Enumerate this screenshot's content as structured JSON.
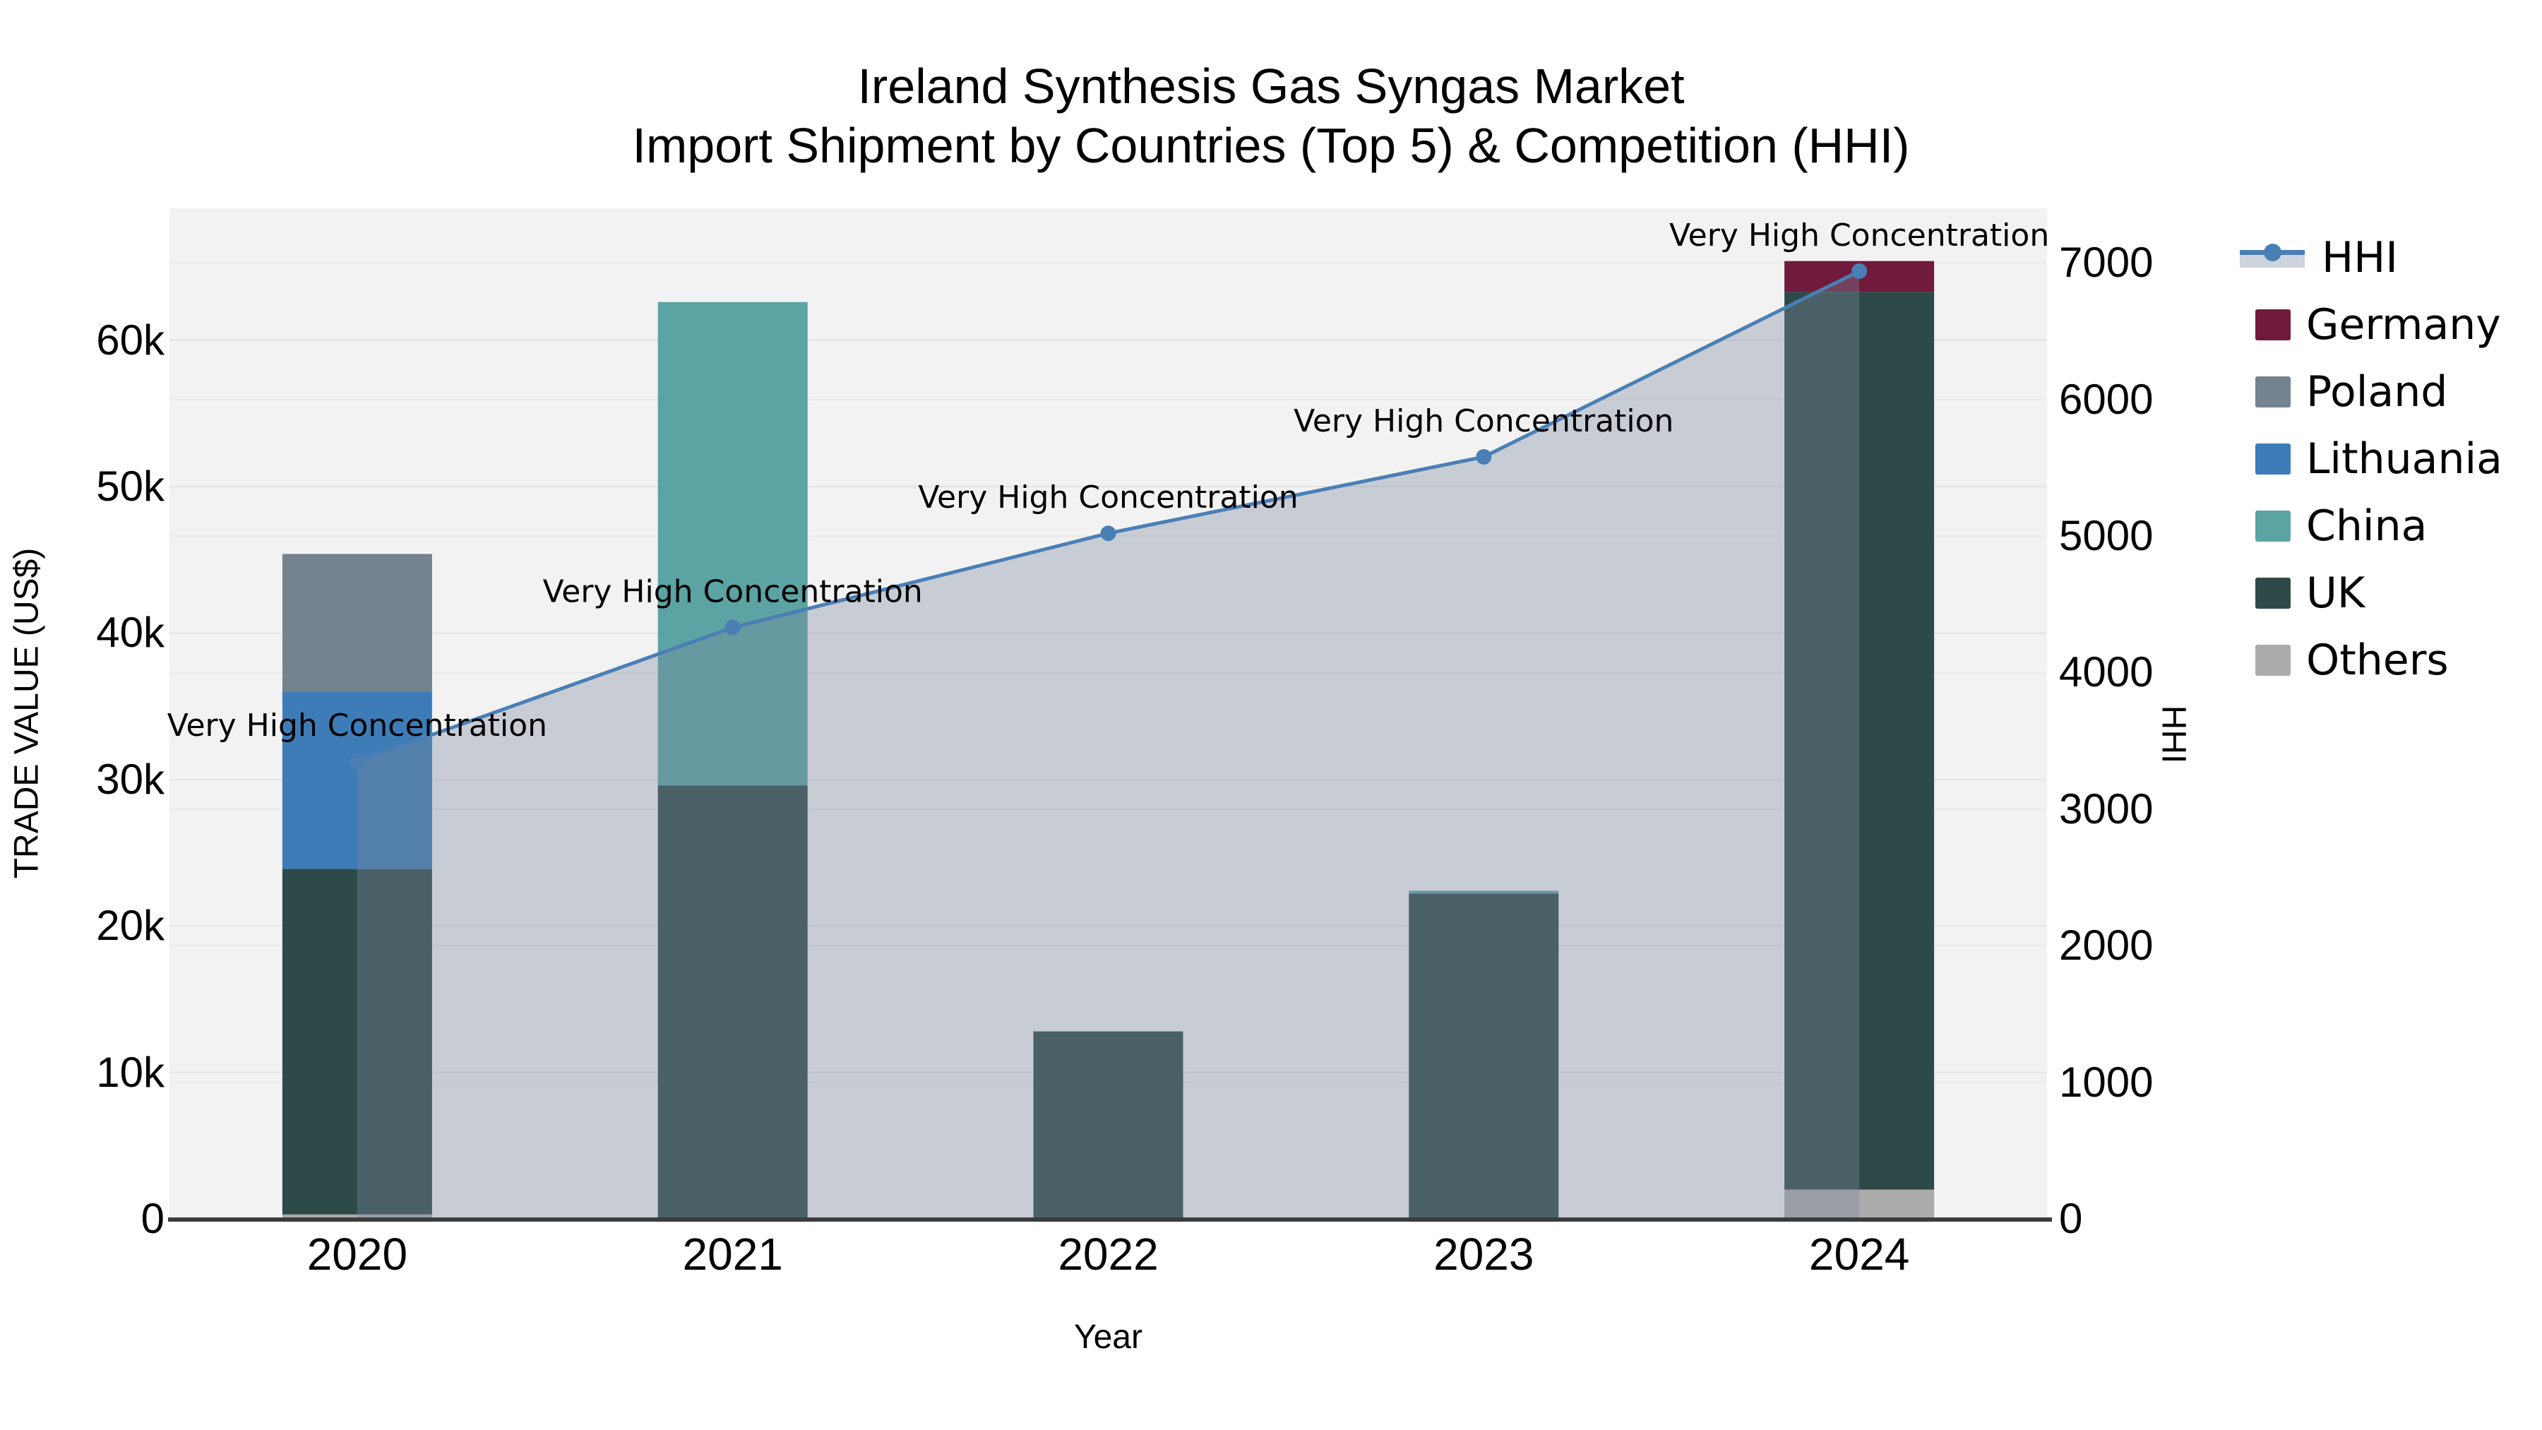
{
  "title": {
    "line1": "Ireland Synthesis Gas Syngas Market",
    "line2": "Import Shipment by Countries (Top 5) & Competition (HHI)"
  },
  "axes": {
    "left_title": "TRADE VALUE (US$)",
    "right_title": "HHI",
    "x_title": "Year",
    "left_ticks": [
      {
        "label": "0",
        "value": 0
      },
      {
        "label": "10k",
        "value": 10000
      },
      {
        "label": "20k",
        "value": 20000
      },
      {
        "label": "30k",
        "value": 30000
      },
      {
        "label": "40k",
        "value": 40000
      },
      {
        "label": "50k",
        "value": 50000
      },
      {
        "label": "60k",
        "value": 60000
      }
    ],
    "right_ticks": [
      {
        "label": "0",
        "value": 0
      },
      {
        "label": "1000",
        "value": 1000
      },
      {
        "label": "2000",
        "value": 2000
      },
      {
        "label": "3000",
        "value": 3000
      },
      {
        "label": "4000",
        "value": 4000
      },
      {
        "label": "5000",
        "value": 5000
      },
      {
        "label": "6000",
        "value": 6000
      },
      {
        "label": "7000",
        "value": 7000
      }
    ]
  },
  "legend": [
    {
      "label": "HHI",
      "type": "line",
      "color": "#4A7FB5"
    },
    {
      "label": "Germany",
      "type": "swatch",
      "color": "#701A3C"
    },
    {
      "label": "Poland",
      "type": "swatch",
      "color": "#75838F"
    },
    {
      "label": "Lithuania",
      "type": "swatch",
      "color": "#3E7CB8"
    },
    {
      "label": "China",
      "type": "swatch",
      "color": "#5CA3A3"
    },
    {
      "label": "UK",
      "type": "swatch",
      "color": "#2E4A48"
    },
    {
      "label": "Others",
      "type": "swatch",
      "color": "#ABABAB"
    }
  ],
  "colors": {
    "plot_bg": "#F2F2F2",
    "grid_left": "#E3E3E3",
    "grid_right": "#E8E8E8",
    "axis_line": "#3C3C3C",
    "hhi_line": "#4A7FB5",
    "area_fill": "#7D889F",
    "area_opacity": 0.36
  },
  "chart_data": {
    "type": "bar",
    "subtype": "stacked-bar-with-line",
    "title": "Ireland Synthesis Gas Syngas Market — Import Shipment by Countries (Top 5) & Competition (HHI)",
    "xlabel": "Year",
    "ylabel_left": "TRADE VALUE (US$)",
    "ylabel_right": "HHI",
    "categories": [
      "2020",
      "2021",
      "2022",
      "2023",
      "2024"
    ],
    "ylim_left": [
      0,
      69000
    ],
    "ylim_right": [
      0,
      7400
    ],
    "grid": true,
    "legend_position": "right",
    "stack_order_bottom_to_top": [
      "Others",
      "UK",
      "China",
      "Lithuania",
      "Poland",
      "Germany"
    ],
    "series": [
      {
        "name": "Germany",
        "color": "#701A3C",
        "values": [
          0,
          0,
          0,
          0,
          2100
        ]
      },
      {
        "name": "Poland",
        "color": "#75838F",
        "values": [
          9400,
          0,
          0,
          0,
          0
        ]
      },
      {
        "name": "Lithuania",
        "color": "#3E7CB8",
        "values": [
          12100,
          0,
          0,
          0,
          0
        ]
      },
      {
        "name": "China",
        "color": "#5CA3A3",
        "values": [
          0,
          33000,
          0,
          200,
          0
        ]
      },
      {
        "name": "UK",
        "color": "#2E4A48",
        "values": [
          23600,
          29600,
          12800,
          22200,
          61300
        ]
      },
      {
        "name": "Others",
        "color": "#ABABAB",
        "values": [
          300,
          0,
          0,
          0,
          2000
        ]
      }
    ],
    "bar_totals": [
      45400,
      62600,
      12800,
      22400,
      65400
    ],
    "line_series": {
      "name": "HHI",
      "color": "#4A7FB5",
      "values": [
        3350,
        4330,
        5020,
        5580,
        6940
      ],
      "area_under_line": true
    },
    "annotations": [
      {
        "x": "2020",
        "text": "Very High Concentration"
      },
      {
        "x": "2021",
        "text": "Very High Concentration"
      },
      {
        "x": "2022",
        "text": "Very High Concentration"
      },
      {
        "x": "2023",
        "text": "Very High Concentration"
      },
      {
        "x": "2024",
        "text": "Very High Concentration"
      }
    ]
  }
}
